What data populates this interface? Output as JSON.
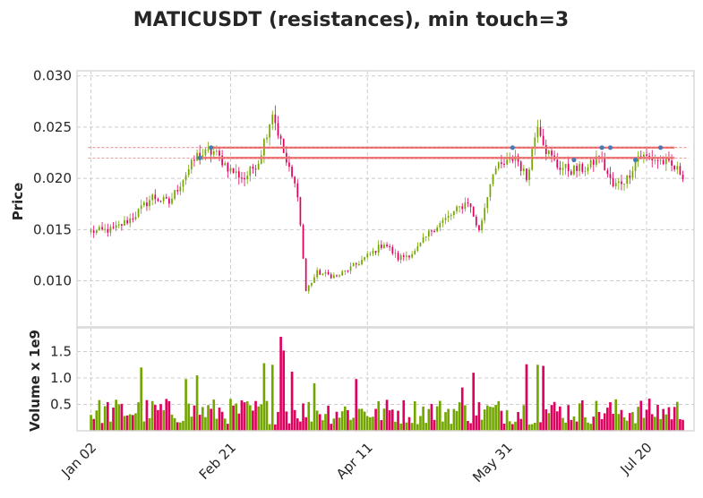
{
  "title": "MATICUSDT (resistances), min touch=3",
  "colors": {
    "up": "#73a600",
    "down": "#e0005e",
    "line": "#f08080",
    "marker": "#4a7ab5"
  },
  "chart_data": {
    "type": "candlestick",
    "title": "MATICUSDT (resistances), min touch=3",
    "grid": true,
    "price_panel": {
      "ylabel": "Price",
      "ylim": [
        0.0055,
        0.0305
      ],
      "y_ticks": [
        "0.010",
        "0.015",
        "0.020",
        "0.025",
        "0.030"
      ],
      "y_tick_values": [
        0.01,
        0.015,
        0.02,
        0.025,
        0.03
      ],
      "anchors": [
        {
          "day": 0,
          "price": 0.0148
        },
        {
          "day": 8,
          "price": 0.015
        },
        {
          "day": 15,
          "price": 0.0162
        },
        {
          "day": 22,
          "price": 0.0182
        },
        {
          "day": 28,
          "price": 0.0176
        },
        {
          "day": 33,
          "price": 0.02
        },
        {
          "day": 38,
          "price": 0.0222
        },
        {
          "day": 44,
          "price": 0.0226
        },
        {
          "day": 50,
          "price": 0.0208
        },
        {
          "day": 55,
          "price": 0.02
        },
        {
          "day": 60,
          "price": 0.0217
        },
        {
          "day": 65,
          "price": 0.0265
        },
        {
          "day": 70,
          "price": 0.0215
        },
        {
          "day": 74,
          "price": 0.0186
        },
        {
          "day": 77,
          "price": 0.009
        },
        {
          "day": 81,
          "price": 0.0108
        },
        {
          "day": 88,
          "price": 0.0104
        },
        {
          "day": 95,
          "price": 0.0116
        },
        {
          "day": 101,
          "price": 0.0128
        },
        {
          "day": 105,
          "price": 0.0137
        },
        {
          "day": 110,
          "price": 0.0122
        },
        {
          "day": 116,
          "price": 0.0128
        },
        {
          "day": 122,
          "price": 0.015
        },
        {
          "day": 128,
          "price": 0.0162
        },
        {
          "day": 135,
          "price": 0.0178
        },
        {
          "day": 139,
          "price": 0.0148
        },
        {
          "day": 144,
          "price": 0.0208
        },
        {
          "day": 150,
          "price": 0.0216
        },
        {
          "day": 152,
          "price": 0.0222
        },
        {
          "day": 156,
          "price": 0.02
        },
        {
          "day": 160,
          "price": 0.0255
        },
        {
          "day": 163,
          "price": 0.0228
        },
        {
          "day": 167,
          "price": 0.0212
        },
        {
          "day": 172,
          "price": 0.0208
        },
        {
          "day": 178,
          "price": 0.021
        },
        {
          "day": 182,
          "price": 0.0222
        },
        {
          "day": 187,
          "price": 0.0192
        },
        {
          "day": 192,
          "price": 0.02
        },
        {
          "day": 196,
          "price": 0.0222
        },
        {
          "day": 200,
          "price": 0.022
        },
        {
          "day": 205,
          "price": 0.0216
        },
        {
          "day": 210,
          "price": 0.0208
        },
        {
          "day": 212,
          "price": 0.0204
        }
      ],
      "resistance_lines": [
        {
          "level": 0.022,
          "start_day": 39,
          "end_day": 209
        },
        {
          "level": 0.023,
          "start_day": 43,
          "end_day": 209
        }
      ],
      "touch_points": [
        {
          "day": 39,
          "price": 0.022
        },
        {
          "day": 43,
          "price": 0.023
        },
        {
          "day": 151,
          "price": 0.023
        },
        {
          "day": 173,
          "price": 0.0218
        },
        {
          "day": 183,
          "price": 0.023
        },
        {
          "day": 186,
          "price": 0.023
        },
        {
          "day": 195,
          "price": 0.0218
        },
        {
          "day": 204,
          "price": 0.023
        }
      ]
    },
    "volume_panel": {
      "ylabel": "Volume x 1e9",
      "ylim": [
        0,
        1.95
      ],
      "y_ticks": [
        "0.5",
        "1.0",
        "1.5"
      ],
      "y_tick_values": [
        0.5,
        1.0,
        1.5
      ],
      "spikes": [
        {
          "day": 18,
          "value": 1.2
        },
        {
          "day": 34,
          "value": 0.98
        },
        {
          "day": 38,
          "value": 1.05
        },
        {
          "day": 62,
          "value": 1.28
        },
        {
          "day": 65,
          "value": 1.25
        },
        {
          "day": 68,
          "value": 1.78
        },
        {
          "day": 69,
          "value": 1.52
        },
        {
          "day": 72,
          "value": 1.12
        },
        {
          "day": 80,
          "value": 0.9
        },
        {
          "day": 95,
          "value": 0.98
        },
        {
          "day": 133,
          "value": 0.82
        },
        {
          "day": 137,
          "value": 1.1
        },
        {
          "day": 156,
          "value": 1.26
        },
        {
          "day": 160,
          "value": 1.25
        },
        {
          "day": 162,
          "value": 1.23
        }
      ]
    },
    "x_axis": {
      "range_days": [
        -5,
        216
      ],
      "ticks": [
        {
          "label": "Jan 02",
          "day": 0
        },
        {
          "label": "Feb 21",
          "day": 50
        },
        {
          "label": "Apr 11",
          "day": 99
        },
        {
          "label": "May 31",
          "day": 149
        },
        {
          "label": "Jul 20",
          "day": 199
        }
      ]
    }
  }
}
